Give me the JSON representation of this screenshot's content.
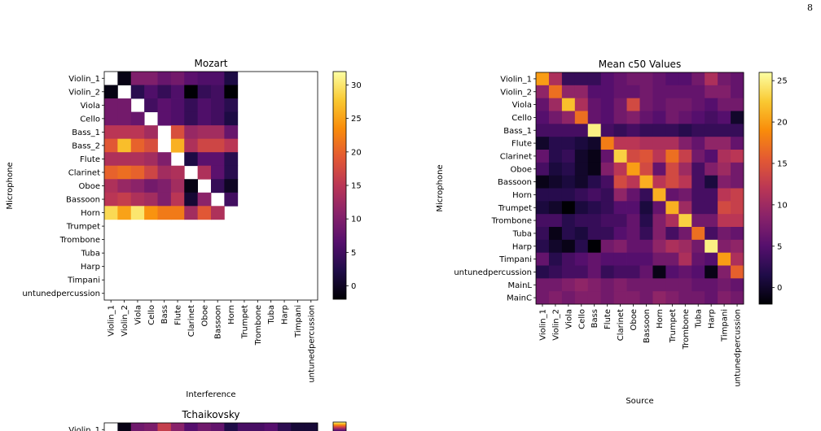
{
  "page_number": "8",
  "chart_data": [
    {
      "type": "heatmap",
      "title": "Mozart",
      "xlabel": "Interference",
      "ylabel": "Microphone",
      "rows": [
        "Violin_1",
        "Violin_2",
        "Viola",
        "Cello",
        "Bass_1",
        "Bass_2",
        "Flute",
        "Clarinet",
        "Oboe",
        "Bassoon",
        "Horn",
        "Trumpet",
        "Trombone",
        "Tuba",
        "Harp",
        "Timpani",
        "untunedpercussion"
      ],
      "cols": [
        "Violin_1",
        "Violin_2",
        "Viola",
        "Cello",
        "Bass",
        "Flute",
        "Clarinet",
        "Oboe",
        "Bassoon",
        "Horn",
        "Trumpet",
        "Trombone",
        "Tuba",
        "Harp",
        "Timpani",
        "untunedpercussion"
      ],
      "values": [
        [
          null,
          -1,
          10,
          10,
          8,
          9,
          7,
          6,
          6,
          2,
          null,
          null,
          null,
          null,
          null,
          null
        ],
        [
          -1,
          null,
          3,
          6,
          4,
          6,
          -2,
          4,
          5,
          -2,
          null,
          null,
          null,
          null,
          null,
          null
        ],
        [
          9,
          9,
          null,
          5,
          7,
          6,
          4,
          6,
          5,
          3,
          null,
          null,
          null,
          null,
          null,
          null
        ],
        [
          9,
          9,
          8,
          null,
          7,
          6,
          4,
          6,
          5,
          2,
          null,
          null,
          null,
          null,
          null,
          null
        ],
        [
          15,
          15,
          15,
          13,
          null,
          18,
          12,
          13,
          13,
          8,
          null,
          null,
          null,
          null,
          null,
          null
        ],
        [
          19,
          27,
          20,
          18,
          null,
          26,
          14,
          17,
          17,
          15,
          null,
          null,
          null,
          null,
          null,
          null
        ],
        [
          14,
          14,
          14,
          13,
          10,
          null,
          2,
          7,
          7,
          3,
          null,
          null,
          null,
          null,
          null,
          null
        ],
        [
          20,
          21,
          20,
          17,
          13,
          14,
          null,
          14,
          7,
          3,
          null,
          null,
          null,
          null,
          null,
          null
        ],
        [
          14,
          12,
          11,
          9,
          10,
          13,
          -1,
          null,
          4,
          0,
          null,
          null,
          null,
          null,
          null,
          null
        ],
        [
          15,
          16,
          14,
          13,
          10,
          15,
          1,
          11,
          null,
          5,
          null,
          null,
          null,
          null,
          null,
          null
        ],
        [
          29,
          25,
          30,
          24,
          22,
          22,
          13,
          19,
          14,
          null,
          null,
          null,
          null,
          null,
          null,
          null
        ],
        [
          null,
          null,
          null,
          null,
          null,
          null,
          null,
          null,
          null,
          null,
          null,
          null,
          null,
          null,
          null,
          null
        ],
        [
          null,
          null,
          null,
          null,
          null,
          null,
          null,
          null,
          null,
          null,
          null,
          null,
          null,
          null,
          null,
          null
        ],
        [
          null,
          null,
          null,
          null,
          null,
          null,
          null,
          null,
          null,
          null,
          null,
          null,
          null,
          null,
          null,
          null
        ],
        [
          null,
          null,
          null,
          null,
          null,
          null,
          null,
          null,
          null,
          null,
          null,
          null,
          null,
          null,
          null,
          null
        ],
        [
          null,
          null,
          null,
          null,
          null,
          null,
          null,
          null,
          null,
          null,
          null,
          null,
          null,
          null,
          null,
          null
        ],
        [
          null,
          null,
          null,
          null,
          null,
          null,
          null,
          null,
          null,
          null,
          null,
          null,
          null,
          null,
          null,
          null
        ]
      ],
      "colorbar": {
        "min": -2,
        "max": 32,
        "ticks": [
          0,
          5,
          10,
          15,
          20,
          25,
          30
        ],
        "colormap": "inferno"
      }
    },
    {
      "type": "heatmap",
      "title": "Mean c50 Values",
      "xlabel": "Source",
      "ylabel": "Microphone",
      "rows": [
        "Violin_1",
        "Violin_2",
        "Viola",
        "Cello",
        "Bass_1",
        "Flute",
        "Clarinet",
        "Oboe",
        "Bassoon",
        "Horn",
        "Trumpet",
        "Trombone",
        "Tuba",
        "Harp",
        "Timpani",
        "untunedpercussion",
        "MainL",
        "MainC"
      ],
      "cols": [
        "Violin_1",
        "Violin_2",
        "Viola",
        "Cello",
        "Bass",
        "Flute",
        "Clarinet",
        "Oboe",
        "Bassoon",
        "Horn",
        "Trumpet",
        "Trombone",
        "Tuba",
        "Harp",
        "Timpani",
        "untunedpercussion"
      ],
      "values": [
        [
          20,
          11,
          3,
          3,
          3,
          5,
          6,
          7,
          7,
          6,
          5,
          5,
          7,
          11,
          7,
          6
        ],
        [
          9,
          17,
          9,
          9,
          5,
          5,
          6,
          6,
          7,
          6,
          6,
          6,
          6,
          8,
          8,
          6
        ],
        [
          6,
          10,
          22,
          11,
          6,
          5,
          7,
          14,
          7,
          6,
          7,
          7,
          6,
          5,
          7,
          7
        ],
        [
          5,
          7,
          9,
          17,
          6,
          5,
          7,
          8,
          6,
          5,
          7,
          6,
          5,
          4,
          5,
          0
        ],
        [
          4,
          4,
          4,
          4,
          25,
          4,
          3,
          4,
          3,
          3,
          3,
          2,
          3,
          3,
          3,
          3
        ],
        [
          0,
          2,
          2,
          1,
          0,
          18,
          12,
          12,
          11,
          11,
          11,
          8,
          6,
          9,
          9,
          6
        ],
        [
          6,
          2,
          3,
          0,
          -1,
          6,
          23,
          14,
          15,
          12,
          17,
          13,
          7,
          5,
          11,
          12
        ],
        [
          4,
          1,
          2,
          0,
          -1,
          8,
          12,
          20,
          14,
          6,
          14,
          10,
          4,
          8,
          10,
          7
        ],
        [
          -1,
          0,
          1,
          0,
          2,
          4,
          14,
          12,
          21,
          12,
          14,
          12,
          4,
          1,
          8,
          7
        ],
        [
          2,
          2,
          2,
          3,
          4,
          3,
          9,
          6,
          3,
          21,
          6,
          7,
          4,
          4,
          12,
          13
        ],
        [
          1,
          0,
          -2,
          1,
          2,
          3,
          5,
          5,
          1,
          6,
          21,
          10,
          4,
          4,
          14,
          13
        ],
        [
          4,
          4,
          2,
          3,
          3,
          4,
          4,
          6,
          2,
          8,
          11,
          23,
          7,
          7,
          12,
          12
        ],
        [
          3,
          -1,
          2,
          1,
          3,
          3,
          5,
          6,
          3,
          8,
          4,
          7,
          17,
          4,
          7,
          6
        ],
        [
          2,
          0,
          -1,
          2,
          -2,
          7,
          8,
          6,
          6,
          9,
          11,
          10,
          7,
          25,
          8,
          9
        ],
        [
          6,
          2,
          4,
          5,
          6,
          5,
          5,
          5,
          5,
          7,
          7,
          11,
          6,
          5,
          20,
          11
        ],
        [
          2,
          3,
          4,
          4,
          6,
          3,
          4,
          4,
          6,
          -1,
          5,
          6,
          5,
          -1,
          8,
          16
        ],
        [
          7,
          7,
          8,
          9,
          8,
          7,
          8,
          7,
          7,
          7,
          7,
          7,
          6,
          6,
          7,
          6
        ],
        [
          7,
          8,
          7,
          8,
          8,
          7,
          8,
          8,
          7,
          9,
          8,
          7,
          7,
          6,
          8,
          7
        ]
      ],
      "colorbar": {
        "min": -2,
        "max": 26,
        "ticks": [
          0,
          5,
          10,
          15,
          20,
          25
        ],
        "colormap": "inferno"
      }
    },
    {
      "type": "heatmap",
      "title": "Tchaikovsky",
      "rows": [
        "Violin_1"
      ],
      "values": [
        [
          null,
          -1,
          8,
          9,
          15,
          10,
          6,
          8,
          7,
          2,
          5,
          5,
          6,
          3,
          1,
          1
        ]
      ]
    }
  ]
}
